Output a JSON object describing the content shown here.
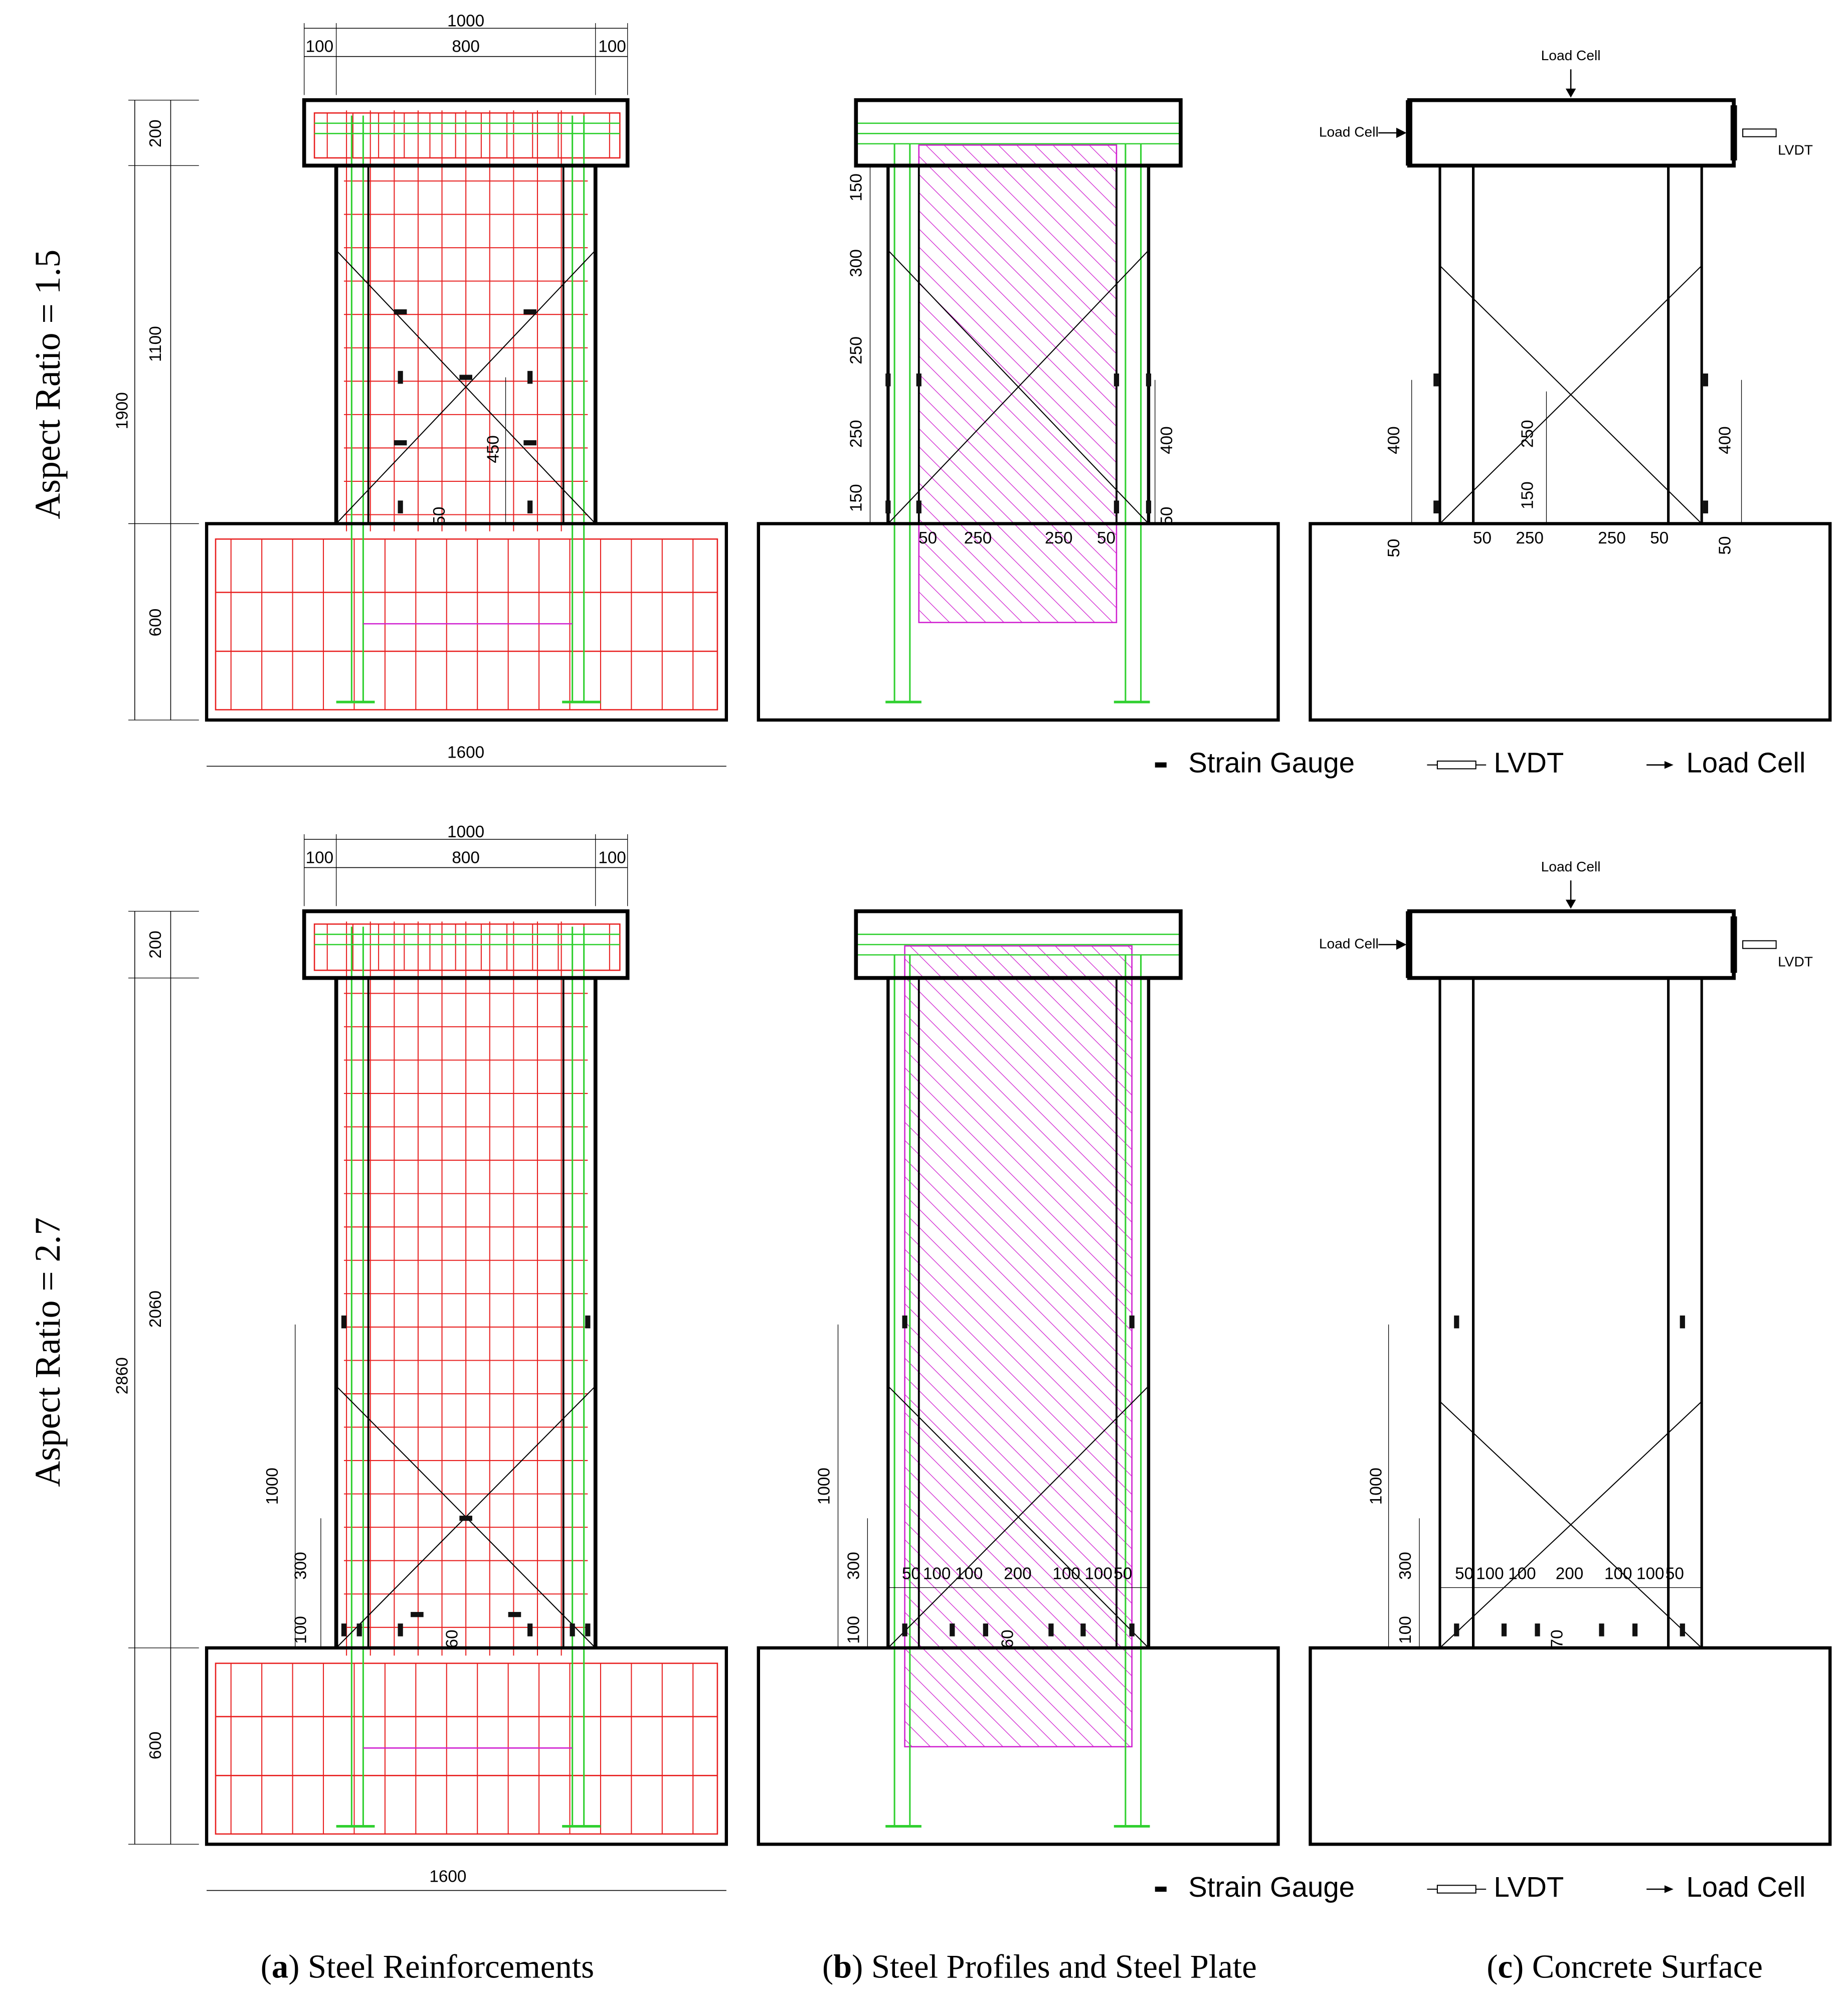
{
  "rows": [
    {
      "label": "Aspect Ratio = 1.5",
      "dims_a": [
        1000,
        100,
        800,
        100,
        1900,
        200,
        1100,
        600,
        1600,
        450,
        50
      ],
      "dims_b": [
        150,
        300,
        250,
        250,
        150,
        400,
        50,
        50,
        250,
        250,
        50
      ],
      "dims_c": [
        400,
        250,
        150,
        400,
        50,
        50,
        50,
        250,
        250,
        50
      ],
      "annotations_c": [
        "Load Cell",
        "Load Cell",
        "LVDT"
      ],
      "legend": [
        "Strain Gauge",
        "LVDT",
        "Load Cell"
      ]
    },
    {
      "label": "Aspect Ratio = 2.7",
      "dims_a": [
        1000,
        100,
        800,
        100,
        2860,
        200,
        2060,
        600,
        1600,
        1000,
        300,
        100,
        60
      ],
      "dims_b": [
        1000,
        300,
        100,
        60,
        50,
        100,
        100,
        200,
        100,
        100,
        50
      ],
      "dims_c": [
        1000,
        300,
        100,
        70,
        50,
        100,
        100,
        200,
        100,
        100,
        50
      ],
      "annotations_c": [
        "Load Cell",
        "Load Cell",
        "LVDT"
      ],
      "legend": [
        "Strain Gauge",
        "LVDT",
        "Load Cell"
      ]
    }
  ],
  "captions": [
    {
      "prefix": "(",
      "letter": "a",
      "suffix": ") Steel Reinforcements"
    },
    {
      "prefix": "(",
      "letter": "b",
      "suffix": ") Steel Profiles and Steel Plate"
    },
    {
      "prefix": "(",
      "letter": "c",
      "suffix": ") Concrete Surface"
    }
  ]
}
